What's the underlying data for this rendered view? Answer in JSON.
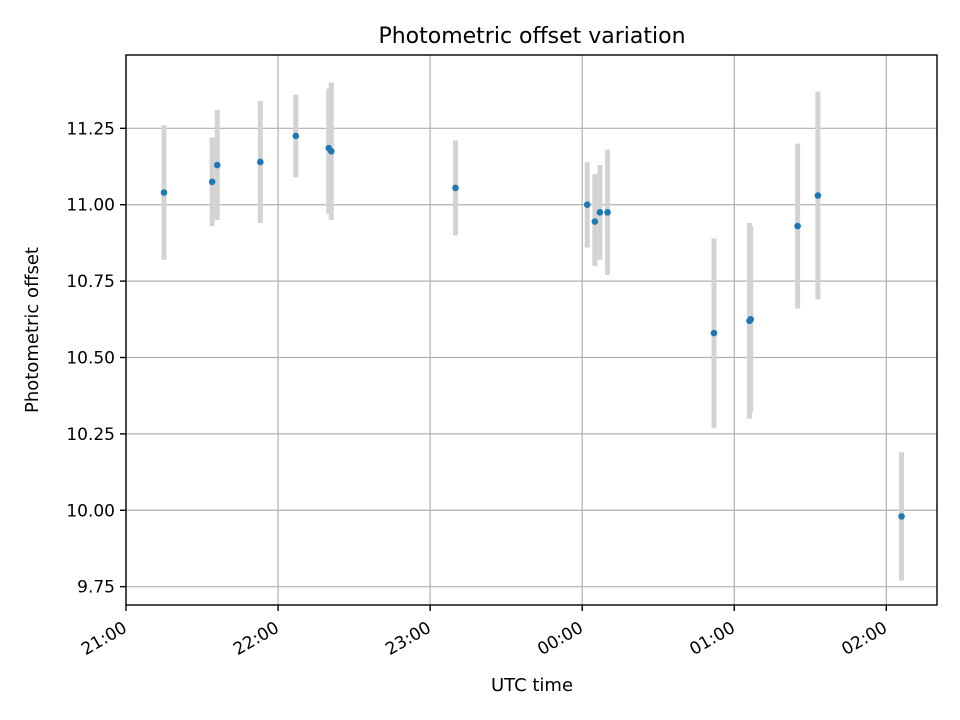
{
  "chart_data": {
    "type": "scatter",
    "title": "Photometric offset variation",
    "xlabel": "UTC time",
    "ylabel": "Photometric offset",
    "x_ticks": [
      {
        "label": "21:00",
        "value": "21:00"
      },
      {
        "label": "22:00",
        "value": "22:00"
      },
      {
        "label": "23:00",
        "value": "23:00"
      },
      {
        "label": "00:00",
        "value": "00:00"
      },
      {
        "label": "01:00",
        "value": "01:00"
      },
      {
        "label": "02:00",
        "value": "02:00"
      }
    ],
    "y_ticks": [
      "9.75",
      "10.00",
      "10.25",
      "10.50",
      "10.75",
      "11.00",
      "11.25"
    ],
    "xlim": [
      "21:00",
      "02:20"
    ],
    "ylim": [
      9.69,
      11.49
    ],
    "grid": true,
    "error_bar_color": "#d3d3d3",
    "point_color": "#1f77b4",
    "series": [
      {
        "points": [
          {
            "t": "21:15",
            "y": 11.04,
            "lo": 10.82,
            "hi": 11.26
          },
          {
            "t": "21:34",
            "y": 11.075,
            "lo": 10.93,
            "hi": 11.22
          },
          {
            "t": "21:36",
            "y": 11.13,
            "lo": 10.95,
            "hi": 11.31
          },
          {
            "t": "21:53",
            "y": 11.14,
            "lo": 10.94,
            "hi": 11.34
          },
          {
            "t": "22:07",
            "y": 11.225,
            "lo": 11.09,
            "hi": 11.36
          },
          {
            "t": "22:20",
            "y": 11.185,
            "lo": 10.97,
            "hi": 11.38
          },
          {
            "t": "22:21",
            "y": 11.175,
            "lo": 10.95,
            "hi": 11.4
          },
          {
            "t": "23:10",
            "y": 11.055,
            "lo": 10.9,
            "hi": 11.21
          },
          {
            "t": "00:02",
            "y": 11.0,
            "lo": 10.86,
            "hi": 11.14
          },
          {
            "t": "00:05",
            "y": 10.945,
            "lo": 10.8,
            "hi": 11.1
          },
          {
            "t": "00:07",
            "y": 10.975,
            "lo": 10.82,
            "hi": 11.13
          },
          {
            "t": "00:10",
            "y": 10.975,
            "lo": 10.77,
            "hi": 11.18
          },
          {
            "t": "00:52",
            "y": 10.58,
            "lo": 10.27,
            "hi": 10.89
          },
          {
            "t": "01:06",
            "y": 10.62,
            "lo": 10.3,
            "hi": 10.94
          },
          {
            "t": "01:06:30",
            "y": 10.625,
            "lo": 10.32,
            "hi": 10.93
          },
          {
            "t": "01:25",
            "y": 10.93,
            "lo": 10.66,
            "hi": 11.2
          },
          {
            "t": "01:33",
            "y": 11.03,
            "lo": 10.69,
            "hi": 11.37
          },
          {
            "t": "02:06",
            "y": 9.98,
            "lo": 9.77,
            "hi": 10.19
          }
        ]
      }
    ]
  }
}
